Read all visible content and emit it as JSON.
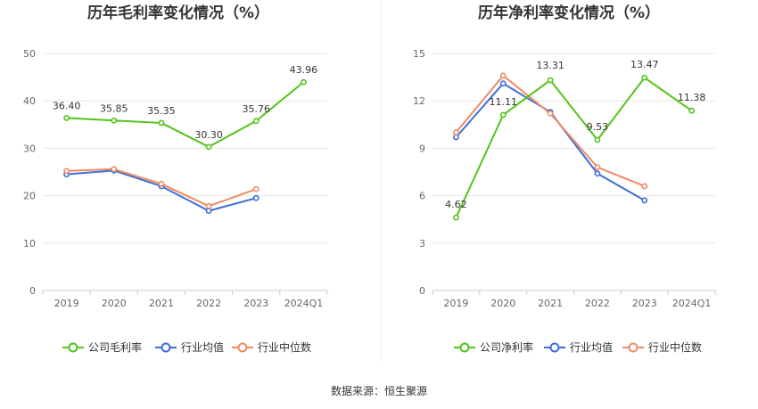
{
  "source_label": "数据来源：恒生聚源",
  "chart_data": [
    {
      "type": "line",
      "title": "历年毛利率变化情况（%）",
      "categories": [
        "2019",
        "2020",
        "2021",
        "2022",
        "2023",
        "2024Q1"
      ],
      "ylim": [
        0,
        50
      ],
      "yticks": [
        0,
        10,
        20,
        30,
        40,
        50
      ],
      "grid": true,
      "legend_position": "bottom",
      "series": [
        {
          "name": "公司毛利率",
          "color": "#52c41a",
          "values": [
            36.4,
            35.85,
            35.35,
            30.3,
            35.76,
            43.96
          ],
          "labels": [
            "36.40",
            "35.85",
            "35.35",
            "30.30",
            "35.76",
            "43.96"
          ]
        },
        {
          "name": "行业均值",
          "color": "#3b6fd8",
          "values": [
            24.5,
            25.3,
            22.0,
            16.8,
            19.5,
            null
          ]
        },
        {
          "name": "行业中位数",
          "color": "#f08a64",
          "values": [
            25.2,
            25.6,
            22.5,
            17.8,
            21.4,
            null
          ]
        }
      ]
    },
    {
      "type": "line",
      "title": "历年净利率变化情况（%）",
      "categories": [
        "2019",
        "2020",
        "2021",
        "2022",
        "2023",
        "2024Q1"
      ],
      "ylim": [
        0,
        15
      ],
      "yticks": [
        0,
        3,
        6,
        9,
        12,
        15
      ],
      "grid": true,
      "legend_position": "bottom",
      "series": [
        {
          "name": "公司净利率",
          "color": "#52c41a",
          "values": [
            4.62,
            11.11,
            13.31,
            9.53,
            13.47,
            11.38
          ],
          "labels": [
            "4.62",
            "11.11",
            "13.31",
            "9.53",
            "13.47",
            "11.38"
          ]
        },
        {
          "name": "行业均值",
          "color": "#3b6fd8",
          "values": [
            9.7,
            13.1,
            11.3,
            7.4,
            5.7,
            null
          ]
        },
        {
          "name": "行业中位数",
          "color": "#f08a64",
          "values": [
            10.0,
            13.6,
            11.2,
            7.8,
            6.6,
            null
          ]
        }
      ]
    }
  ]
}
